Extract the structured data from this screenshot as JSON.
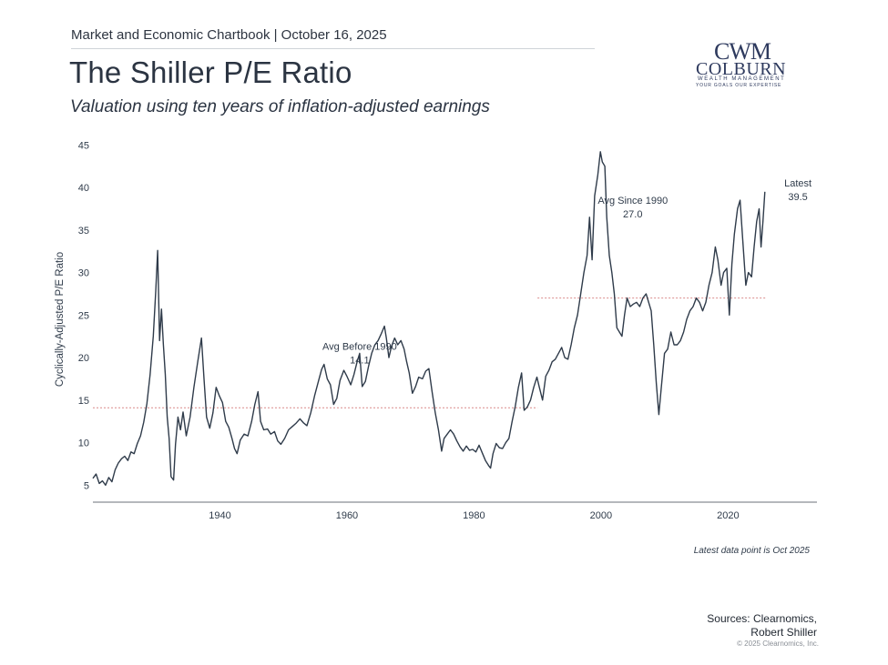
{
  "header": {
    "top_line": "Market and Economic Chartbook | October 16, 2025",
    "title": "The Shiller P/E Ratio",
    "subtitle": "Valuation using ten years of inflation-adjusted earnings"
  },
  "logo": {
    "mark": "CWM",
    "name": "COLBURN",
    "line1": "WEALTH MANAGEMENT",
    "line2": "YOUR GOALS OUR EXPERTISE"
  },
  "colors": {
    "line": "#2f3b4a",
    "reference": "#d98a8a",
    "axis": "#6b7178",
    "text": "#2f3b4a"
  },
  "chart_data": {
    "type": "line",
    "ylabel": "Cyclically-Adjusted P/E Ratio",
    "xlabel": "",
    "xlim": [
      1920,
      2034
    ],
    "ylim": [
      3,
      46
    ],
    "x_ticks": [
      1940,
      1960,
      1980,
      2000,
      2020
    ],
    "y_ticks": [
      5,
      10,
      15,
      20,
      25,
      30,
      35,
      40,
      45
    ],
    "grid": false,
    "series": [
      {
        "values": [
          [
            1920.0,
            5.8
          ],
          [
            1920.5,
            6.3
          ],
          [
            1921.0,
            5.2
          ],
          [
            1921.5,
            5.5
          ],
          [
            1922.0,
            5.0
          ],
          [
            1922.5,
            5.9
          ],
          [
            1923.0,
            5.4
          ],
          [
            1923.5,
            6.8
          ],
          [
            1924.0,
            7.6
          ],
          [
            1924.5,
            8.1
          ],
          [
            1925.0,
            8.4
          ],
          [
            1925.5,
            7.9
          ],
          [
            1926.0,
            8.9
          ],
          [
            1926.5,
            8.7
          ],
          [
            1927.0,
            9.9
          ],
          [
            1927.5,
            10.8
          ],
          [
            1928.0,
            12.4
          ],
          [
            1928.5,
            14.6
          ],
          [
            1929.0,
            18.0
          ],
          [
            1929.5,
            22.5
          ],
          [
            1929.9,
            27.8
          ],
          [
            1930.2,
            32.6
          ],
          [
            1930.5,
            22.0
          ],
          [
            1930.8,
            25.7
          ],
          [
            1931.1,
            21.5
          ],
          [
            1931.4,
            18.0
          ],
          [
            1931.7,
            13.0
          ],
          [
            1932.0,
            10.5
          ],
          [
            1932.3,
            6.0
          ],
          [
            1932.7,
            5.6
          ],
          [
            1933.0,
            9.8
          ],
          [
            1933.4,
            13.0
          ],
          [
            1933.8,
            11.5
          ],
          [
            1934.2,
            13.6
          ],
          [
            1934.7,
            10.8
          ],
          [
            1935.3,
            13.0
          ],
          [
            1935.9,
            16.5
          ],
          [
            1936.5,
            19.5
          ],
          [
            1937.1,
            22.3
          ],
          [
            1937.5,
            17.5
          ],
          [
            1937.9,
            13.0
          ],
          [
            1938.4,
            11.7
          ],
          [
            1938.9,
            13.5
          ],
          [
            1939.4,
            16.5
          ],
          [
            1939.9,
            15.5
          ],
          [
            1940.4,
            14.7
          ],
          [
            1940.9,
            12.5
          ],
          [
            1941.4,
            11.8
          ],
          [
            1941.9,
            10.5
          ],
          [
            1942.3,
            9.3
          ],
          [
            1942.7,
            8.7
          ],
          [
            1943.2,
            10.3
          ],
          [
            1943.8,
            11.0
          ],
          [
            1944.4,
            10.8
          ],
          [
            1945.0,
            12.5
          ],
          [
            1945.5,
            14.5
          ],
          [
            1946.0,
            16.0
          ],
          [
            1946.4,
            12.5
          ],
          [
            1946.9,
            11.5
          ],
          [
            1947.5,
            11.6
          ],
          [
            1948.0,
            11.0
          ],
          [
            1948.6,
            11.3
          ],
          [
            1949.1,
            10.2
          ],
          [
            1949.6,
            9.8
          ],
          [
            1950.2,
            10.5
          ],
          [
            1950.8,
            11.5
          ],
          [
            1951.4,
            11.9
          ],
          [
            1952.0,
            12.3
          ],
          [
            1952.6,
            12.8
          ],
          [
            1953.2,
            12.3
          ],
          [
            1953.7,
            12.0
          ],
          [
            1954.3,
            13.5
          ],
          [
            1954.9,
            15.5
          ],
          [
            1955.5,
            17.2
          ],
          [
            1956.0,
            18.6
          ],
          [
            1956.4,
            19.2
          ],
          [
            1956.9,
            17.5
          ],
          [
            1957.4,
            16.8
          ],
          [
            1957.9,
            14.5
          ],
          [
            1958.4,
            15.2
          ],
          [
            1958.9,
            17.3
          ],
          [
            1959.5,
            18.5
          ],
          [
            1960.0,
            17.8
          ],
          [
            1960.6,
            16.8
          ],
          [
            1961.1,
            18.0
          ],
          [
            1961.6,
            19.5
          ],
          [
            1962.0,
            20.5
          ],
          [
            1962.4,
            16.6
          ],
          [
            1962.9,
            17.2
          ],
          [
            1963.4,
            19.0
          ],
          [
            1963.9,
            20.5
          ],
          [
            1964.4,
            21.5
          ],
          [
            1964.9,
            22.0
          ],
          [
            1965.4,
            22.8
          ],
          [
            1965.9,
            23.7
          ],
          [
            1966.2,
            22.3
          ],
          [
            1966.6,
            20.0
          ],
          [
            1967.0,
            21.3
          ],
          [
            1967.5,
            22.3
          ],
          [
            1968.0,
            21.5
          ],
          [
            1968.5,
            22.0
          ],
          [
            1969.0,
            21.0
          ],
          [
            1969.4,
            19.5
          ],
          [
            1969.8,
            18.2
          ],
          [
            1970.3,
            15.8
          ],
          [
            1970.8,
            16.6
          ],
          [
            1971.3,
            17.7
          ],
          [
            1971.9,
            17.5
          ],
          [
            1972.4,
            18.4
          ],
          [
            1972.9,
            18.7
          ],
          [
            1973.4,
            16.0
          ],
          [
            1973.9,
            13.5
          ],
          [
            1974.4,
            11.5
          ],
          [
            1974.9,
            9.0
          ],
          [
            1975.3,
            10.5
          ],
          [
            1975.8,
            11.0
          ],
          [
            1976.3,
            11.5
          ],
          [
            1976.8,
            11.0
          ],
          [
            1977.3,
            10.2
          ],
          [
            1977.8,
            9.5
          ],
          [
            1978.3,
            9.0
          ],
          [
            1978.8,
            9.6
          ],
          [
            1979.3,
            9.1
          ],
          [
            1979.8,
            9.2
          ],
          [
            1980.3,
            8.9
          ],
          [
            1980.8,
            9.7
          ],
          [
            1981.3,
            8.8
          ],
          [
            1981.8,
            7.9
          ],
          [
            1982.3,
            7.3
          ],
          [
            1982.6,
            7.0
          ],
          [
            1983.0,
            8.7
          ],
          [
            1983.5,
            9.9
          ],
          [
            1984.0,
            9.4
          ],
          [
            1984.5,
            9.3
          ],
          [
            1985.0,
            10.0
          ],
          [
            1985.5,
            10.5
          ],
          [
            1986.0,
            12.5
          ],
          [
            1986.5,
            14.3
          ],
          [
            1987.0,
            16.5
          ],
          [
            1987.5,
            18.2
          ],
          [
            1987.9,
            13.8
          ],
          [
            1988.4,
            14.2
          ],
          [
            1988.9,
            15.0
          ],
          [
            1989.4,
            16.5
          ],
          [
            1989.9,
            17.7
          ],
          [
            1990.3,
            16.5
          ],
          [
            1990.8,
            15.0
          ],
          [
            1991.3,
            17.8
          ],
          [
            1991.8,
            18.5
          ],
          [
            1992.3,
            19.5
          ],
          [
            1992.8,
            19.8
          ],
          [
            1993.3,
            20.5
          ],
          [
            1993.8,
            21.2
          ],
          [
            1994.3,
            20.0
          ],
          [
            1994.8,
            19.8
          ],
          [
            1995.3,
            21.5
          ],
          [
            1995.8,
            23.5
          ],
          [
            1996.3,
            25.0
          ],
          [
            1996.8,
            27.5
          ],
          [
            1997.3,
            30.0
          ],
          [
            1997.8,
            32.0
          ],
          [
            1998.2,
            36.5
          ],
          [
            1998.6,
            31.5
          ],
          [
            1999.0,
            39.0
          ],
          [
            1999.5,
            41.5
          ],
          [
            1999.9,
            44.2
          ],
          [
            2000.2,
            43.0
          ],
          [
            2000.6,
            42.5
          ],
          [
            2000.9,
            36.5
          ],
          [
            2001.3,
            32.0
          ],
          [
            2001.7,
            30.0
          ],
          [
            2002.1,
            27.5
          ],
          [
            2002.5,
            23.5
          ],
          [
            2002.9,
            23.0
          ],
          [
            2003.3,
            22.5
          ],
          [
            2003.7,
            25.0
          ],
          [
            2004.1,
            27.0
          ],
          [
            2004.6,
            26.0
          ],
          [
            2005.1,
            26.3
          ],
          [
            2005.6,
            26.5
          ],
          [
            2006.1,
            26.0
          ],
          [
            2006.6,
            27.0
          ],
          [
            2007.1,
            27.5
          ],
          [
            2007.5,
            26.5
          ],
          [
            2007.9,
            25.5
          ],
          [
            2008.3,
            21.5
          ],
          [
            2008.7,
            17.0
          ],
          [
            2009.1,
            13.3
          ],
          [
            2009.5,
            16.5
          ],
          [
            2010.0,
            20.5
          ],
          [
            2010.5,
            21.0
          ],
          [
            2011.0,
            23.0
          ],
          [
            2011.5,
            21.5
          ],
          [
            2012.0,
            21.5
          ],
          [
            2012.5,
            22.0
          ],
          [
            2013.0,
            23.0
          ],
          [
            2013.5,
            24.5
          ],
          [
            2014.0,
            25.5
          ],
          [
            2014.5,
            26.0
          ],
          [
            2015.0,
            27.0
          ],
          [
            2015.5,
            26.5
          ],
          [
            2016.0,
            25.5
          ],
          [
            2016.5,
            26.5
          ],
          [
            2017.0,
            28.5
          ],
          [
            2017.5,
            30.0
          ],
          [
            2018.0,
            33.0
          ],
          [
            2018.4,
            31.5
          ],
          [
            2018.9,
            28.5
          ],
          [
            2019.3,
            30.0
          ],
          [
            2019.8,
            30.5
          ],
          [
            2020.2,
            25.0
          ],
          [
            2020.6,
            31.0
          ],
          [
            2021.0,
            34.5
          ],
          [
            2021.5,
            37.5
          ],
          [
            2021.9,
            38.5
          ],
          [
            2022.3,
            34.0
          ],
          [
            2022.8,
            28.5
          ],
          [
            2023.2,
            30.0
          ],
          [
            2023.7,
            29.5
          ],
          [
            2024.1,
            33.0
          ],
          [
            2024.5,
            36.0
          ],
          [
            2024.9,
            37.5
          ],
          [
            2025.2,
            33.0
          ],
          [
            2025.5,
            36.0
          ],
          [
            2025.8,
            39.5
          ]
        ]
      }
    ],
    "reference_lines": [
      {
        "from": 1920,
        "to": 1990,
        "value": 14.1
      },
      {
        "from": 1990,
        "to": 2026,
        "value": 27.0
      }
    ],
    "annotations": [
      {
        "line1": "Avg Before 1990",
        "line2": "14.1",
        "x": 1962,
        "y": 20.9
      },
      {
        "line1": "Avg Since 1990",
        "line2": "27.0",
        "x": 2005,
        "y": 38.1
      },
      {
        "line1": "Latest",
        "line2": "39.5",
        "x": 2031,
        "y": 40.1
      }
    ]
  },
  "footnote": "Latest data point is Oct 2025",
  "sources": {
    "line1": "Sources: Clearnomics,",
    "line2": "Robert Shiller"
  },
  "copyright": "© 2025 Clearnomics, Inc."
}
